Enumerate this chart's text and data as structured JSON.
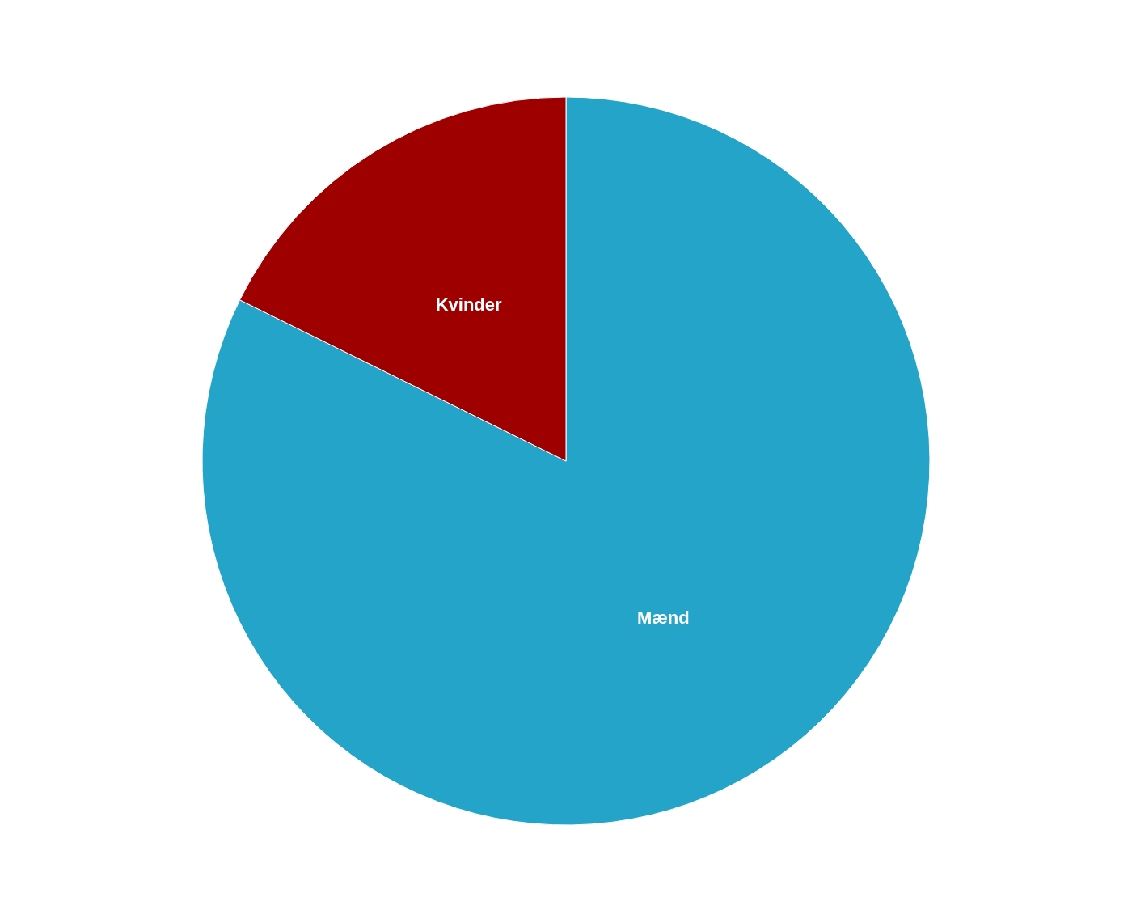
{
  "chart_data": {
    "type": "pie",
    "categories": [
      "Mænd",
      "Kvinder"
    ],
    "values": [
      82.3,
      17.7
    ],
    "colors": [
      "#24a4c8",
      "#9e0000"
    ],
    "legend": false
  }
}
